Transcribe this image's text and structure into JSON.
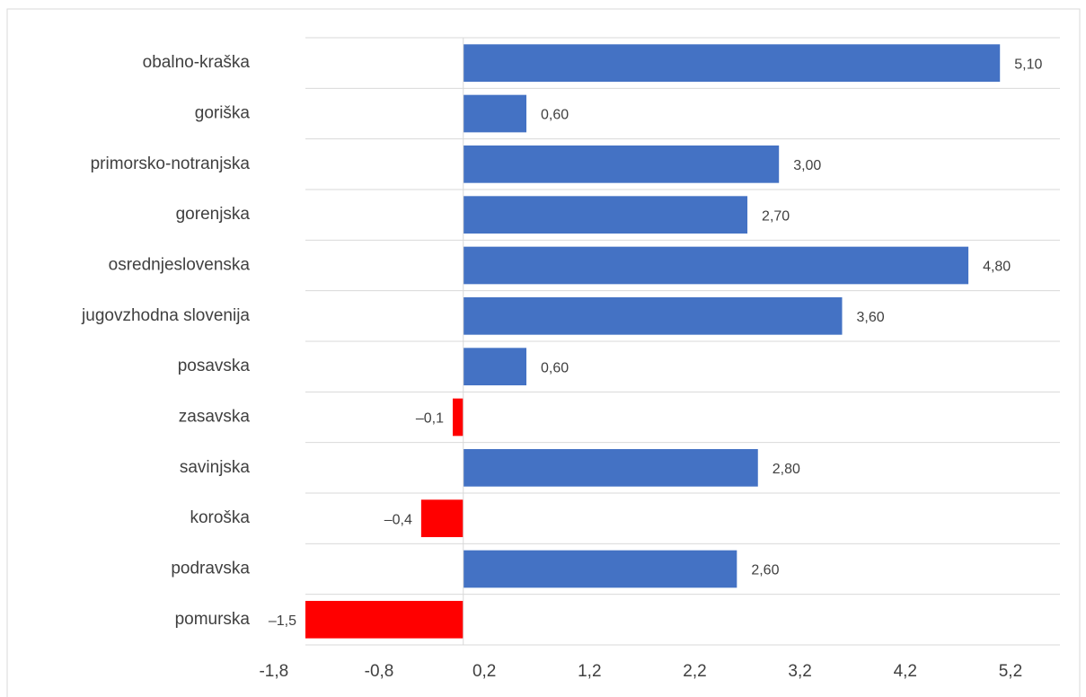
{
  "chart_data": {
    "type": "barh",
    "categories": [
      "obalno-kraška",
      "goriška",
      "primorsko-notranjska",
      "gorenjska",
      "osrednjeslovenska",
      "jugovzhodna slovenija",
      "posavska",
      "zasavska",
      "savinjska",
      "koroška",
      "podravska",
      "pomurska"
    ],
    "values": [
      5.1,
      0.6,
      3.0,
      2.7,
      4.8,
      3.6,
      0.6,
      -0.1,
      2.8,
      -0.4,
      2.6,
      -1.5
    ],
    "value_labels": [
      "5,10",
      "0,60",
      "3,00",
      "2,70",
      "4,80",
      "3,60",
      "0,60",
      "–0,1",
      "2,80",
      "–0,4",
      "2,60",
      "–1,5"
    ],
    "color": "#4472c4",
    "negative_color": "#ff0000",
    "xlim": [
      -1.5,
      5.67
    ],
    "xticks": [
      {
        "value": -1.8,
        "label": "-1,8"
      },
      {
        "value": -0.8,
        "label": "-0,8"
      },
      {
        "value": 0.2,
        "label": "0,2"
      },
      {
        "value": 1.2,
        "label": "1,2"
      },
      {
        "value": 2.2,
        "label": "2,2"
      },
      {
        "value": 3.2,
        "label": "3,2"
      },
      {
        "value": 4.2,
        "label": "4,2"
      },
      {
        "value": 5.2,
        "label": "5,2"
      }
    ],
    "grid": false
  }
}
